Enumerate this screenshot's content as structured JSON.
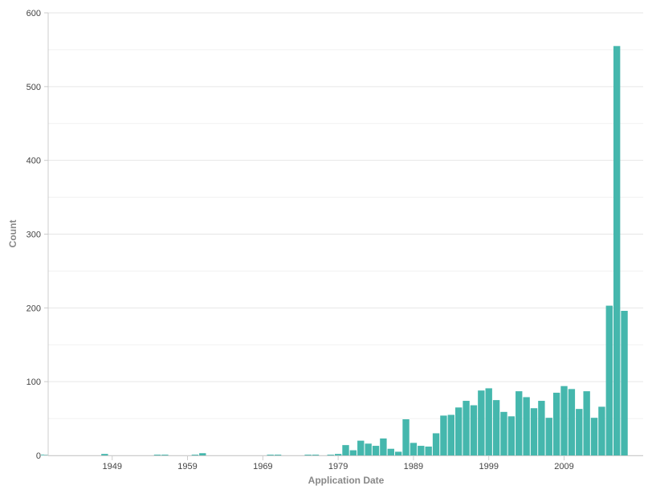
{
  "chart_data": {
    "type": "bar",
    "xlabel": "Application Date",
    "ylabel": "Count",
    "ylim": [
      0,
      600
    ],
    "yticks": [
      0,
      100,
      200,
      300,
      400,
      500,
      600
    ],
    "xlim": [
      1940.5,
      2019.5
    ],
    "xticks": [
      1949,
      1959,
      1969,
      1979,
      1989,
      1999,
      2009
    ],
    "grid": true,
    "bar_color": "#45b7ad",
    "series": [
      {
        "x": [
          1940,
          1948,
          1955,
          1956,
          1960,
          1961,
          1970,
          1971,
          1975,
          1976,
          1978,
          1979,
          1980,
          1981,
          1982,
          1983,
          1984,
          1985,
          1986,
          1987,
          1988,
          1989,
          1990,
          1991,
          1992,
          1993,
          1994,
          1995,
          1996,
          1997,
          1998,
          1999,
          2000,
          2001,
          2002,
          2003,
          2004,
          2005,
          2006,
          2007,
          2008,
          2009,
          2010,
          2011,
          2012,
          2013,
          2014,
          2015,
          2016,
          2017,
          2018,
          2019
        ],
        "values": [
          1,
          2,
          1,
          1,
          1,
          3,
          1,
          1,
          1,
          1,
          1,
          2,
          14,
          7,
          20,
          16,
          13,
          23,
          9,
          5,
          49,
          17,
          13,
          12,
          30,
          54,
          55,
          65,
          74,
          68,
          88,
          91,
          75,
          59,
          53,
          87,
          79,
          64,
          74,
          51,
          85,
          94,
          90,
          63,
          87,
          51,
          66,
          203,
          555,
          196,
          0,
          0
        ]
      }
    ]
  }
}
